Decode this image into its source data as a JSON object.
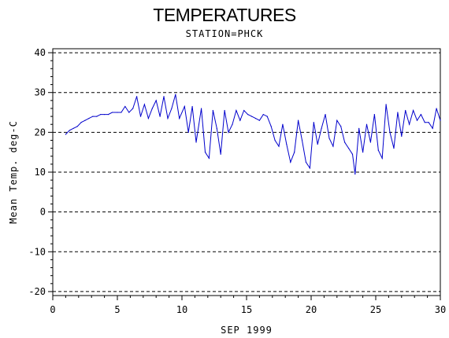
{
  "chart_data": {
    "type": "line",
    "title": "TEMPERATURES",
    "subtitle": "STATION=PHCK",
    "xlabel": "SEP 1999",
    "ylabel": "Mean Temp. deg-C",
    "xlim": [
      0,
      30
    ],
    "ylim": [
      -21,
      41
    ],
    "x_ticks": [
      0,
      5,
      10,
      15,
      20,
      25,
      30
    ],
    "y_ticks": [
      -20,
      -10,
      0,
      10,
      20,
      30,
      40
    ],
    "grid": "dashed horizontal",
    "series": [
      {
        "color": "#0000cc",
        "points": [
          [
            1.0,
            19.5
          ],
          [
            1.3,
            20.5
          ],
          [
            1.6,
            21.0
          ],
          [
            1.9,
            21.5
          ],
          [
            2.2,
            22.5
          ],
          [
            2.5,
            23.0
          ],
          [
            2.8,
            23.5
          ],
          [
            3.1,
            24.0
          ],
          [
            3.4,
            24.0
          ],
          [
            3.7,
            24.5
          ],
          [
            4.0,
            24.5
          ],
          [
            4.3,
            24.5
          ],
          [
            4.6,
            25.0
          ],
          [
            5.0,
            25.0
          ],
          [
            5.3,
            25.0
          ],
          [
            5.6,
            26.5
          ],
          [
            5.9,
            25.0
          ],
          [
            6.2,
            26.0
          ],
          [
            6.5,
            29.0
          ],
          [
            6.8,
            24.0
          ],
          [
            7.1,
            27.0
          ],
          [
            7.4,
            23.5
          ],
          [
            7.7,
            26.0
          ],
          [
            8.0,
            28.0
          ],
          [
            8.3,
            24.0
          ],
          [
            8.6,
            29.0
          ],
          [
            8.9,
            23.5
          ],
          [
            9.2,
            26.0
          ],
          [
            9.5,
            29.5
          ],
          [
            9.8,
            23.5
          ],
          [
            10.2,
            26.5
          ],
          [
            10.5,
            20.0
          ],
          [
            10.8,
            26.5
          ],
          [
            11.1,
            17.5
          ],
          [
            11.5,
            26.0
          ],
          [
            11.8,
            15.0
          ],
          [
            12.1,
            13.5
          ],
          [
            12.4,
            25.5
          ],
          [
            12.7,
            21.0
          ],
          [
            13.0,
            14.5
          ],
          [
            13.3,
            25.5
          ],
          [
            13.6,
            20.0
          ],
          [
            13.9,
            22.0
          ],
          [
            14.2,
            25.5
          ],
          [
            14.5,
            23.0
          ],
          [
            14.8,
            25.5
          ],
          [
            15.1,
            24.5
          ],
          [
            15.4,
            24.0
          ],
          [
            15.7,
            23.5
          ],
          [
            16.0,
            23.0
          ],
          [
            16.3,
            24.5
          ],
          [
            16.6,
            24.0
          ],
          [
            16.9,
            21.5
          ],
          [
            17.2,
            18.0
          ],
          [
            17.5,
            16.5
          ],
          [
            17.8,
            22.0
          ],
          [
            18.1,
            17.0
          ],
          [
            18.4,
            12.5
          ],
          [
            18.7,
            15.0
          ],
          [
            19.0,
            23.0
          ],
          [
            19.3,
            18.0
          ],
          [
            19.6,
            12.5
          ],
          [
            19.9,
            11.0
          ],
          [
            20.2,
            22.5
          ],
          [
            20.5,
            17.0
          ],
          [
            20.8,
            21.0
          ],
          [
            21.1,
            24.5
          ],
          [
            21.4,
            18.5
          ],
          [
            21.7,
            16.5
          ],
          [
            22.0,
            23.0
          ],
          [
            22.3,
            21.5
          ],
          [
            22.6,
            17.5
          ],
          [
            22.9,
            16.0
          ],
          [
            23.2,
            14.5
          ],
          [
            23.4,
            9.5
          ],
          [
            23.7,
            21.0
          ],
          [
            24.0,
            15.0
          ],
          [
            24.3,
            22.0
          ],
          [
            24.6,
            17.5
          ],
          [
            24.9,
            24.5
          ],
          [
            25.2,
            15.5
          ],
          [
            25.5,
            13.5
          ],
          [
            25.8,
            27.0
          ],
          [
            26.1,
            20.0
          ],
          [
            26.4,
            16.0
          ],
          [
            26.7,
            25.0
          ],
          [
            27.0,
            19.0
          ],
          [
            27.3,
            25.5
          ],
          [
            27.6,
            22.0
          ],
          [
            27.9,
            25.5
          ],
          [
            28.2,
            23.0
          ],
          [
            28.5,
            24.5
          ],
          [
            28.8,
            22.5
          ],
          [
            29.1,
            22.5
          ],
          [
            29.4,
            21.0
          ],
          [
            29.7,
            26.0
          ],
          [
            30.0,
            23.0
          ]
        ]
      }
    ]
  }
}
